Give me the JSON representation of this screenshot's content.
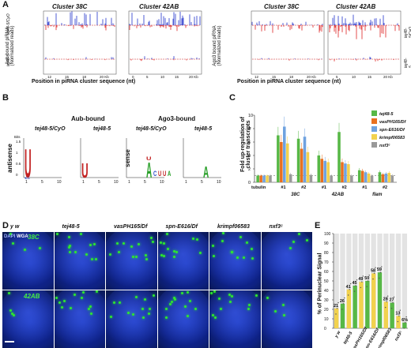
{
  "panels": {
    "A": "A",
    "B": "B",
    "C": "C",
    "D": "D",
    "E": "E"
  },
  "panelA": {
    "left_ylabel": [
      "Aub bound piRNA",
      "(Normalized reads)"
    ],
    "right_ylabel": [
      "Ago3 bound piRNA",
      "(Normalized reads)"
    ],
    "cluster38": "Cluster 38C",
    "cluster42": "Cluster 42AB",
    "row_tej_cyo": "tej48-5/CyO",
    "row_tej": "tej48-5",
    "xlabel": "Position in piRNA cluster sequence (nt)",
    "ticks38": [
      "12",
      "15",
      "18",
      "20 Kb"
    ],
    "ticks42": [
      "0",
      "5",
      "10",
      "15",
      "20 Kb"
    ],
    "ticks42r": [
      "5",
      "10",
      "15",
      "20 Kb"
    ],
    "ticks38r": [
      "12",
      "15",
      "18",
      "20 Kb"
    ]
  },
  "panelB": {
    "aub_title": "Aub-bound",
    "ago_title": "Ago3-bound",
    "g1": "tej48-5/CyO",
    "g2": "tej48-5",
    "antisense": "antisense",
    "sense": "sense",
    "bits": "Bits",
    "bits_ticks": [
      "1.5",
      "1",
      "0.5",
      "0"
    ],
    "pos_ticks": [
      "1",
      "5",
      "10"
    ]
  },
  "panelC": {
    "ylabel": [
      "Fold up-regulation of",
      "cluster transcripts"
    ],
    "yticks": [
      "0",
      "2",
      "4",
      "6",
      "8",
      "10"
    ],
    "xcats": [
      "tubulin",
      "#1",
      "#2",
      "#1",
      "#2",
      "#1",
      "#2"
    ],
    "groups": [
      "38C",
      "42AB",
      "flam"
    ],
    "legend": [
      "tej48-5",
      "vasPH165/Df",
      "spn-E616/Df",
      "krimpf06583",
      "nxf3ᶜ"
    ],
    "colors": [
      "#57b846",
      "#e8701f",
      "#6fa2e0",
      "#f2d24e",
      "#999999"
    ],
    "ylim": [
      0,
      10
    ]
  },
  "chart_data": {
    "type": "bar",
    "title": "",
    "ylabel": "Fold up-regulation of cluster transcripts",
    "ylim": [
      0,
      10
    ],
    "categories": [
      "tubulin",
      "38C #1",
      "38C #2",
      "42AB #1",
      "42AB #2",
      "flam #1",
      "flam #2"
    ],
    "series": [
      {
        "name": "tej48-5",
        "values": [
          1.0,
          7.0,
          6.5,
          4.0,
          7.5,
          1.8,
          1.5
        ]
      },
      {
        "name": "vasPH165/Df",
        "values": [
          1.0,
          6.0,
          5.0,
          3.5,
          3.0,
          1.7,
          1.2
        ]
      },
      {
        "name": "spn-E616/Df",
        "values": [
          1.0,
          8.3,
          6.8,
          3.2,
          2.8,
          1.5,
          1.3
        ]
      },
      {
        "name": "krimpf06583",
        "values": [
          1.0,
          5.8,
          4.5,
          3.0,
          2.7,
          1.3,
          1.4
        ]
      },
      {
        "name": "nxf3ᶜ",
        "values": [
          1.0,
          1.2,
          1.1,
          1.0,
          1.0,
          1.0,
          1.0
        ]
      }
    ]
  },
  "panelD": {
    "cols": [
      "y w",
      "tej48-5",
      "vasPH165/Df",
      "spn-E616/Df",
      "krimpf06583",
      "nxf3ᶜ"
    ],
    "row1": "38C",
    "row2": "42AB",
    "stain_dapi": "DAPI",
    "stain_wga": "WGA"
  },
  "panelE": {
    "ylabel": "% of Perinuclear Signal",
    "yticks": [
      "0",
      "10",
      "20",
      "30",
      "40",
      "50",
      "60",
      "70",
      "80",
      "90",
      "100"
    ],
    "cats": [
      "y w",
      "tej48-5",
      "vasPH165/Df",
      "spn-E616/Df",
      "krimpf06583",
      "nxf3ᶜ"
    ],
    "values": [
      21,
      26,
      41,
      45,
      49,
      50,
      58,
      59,
      28,
      27,
      13,
      6
    ],
    "labels": [
      "21",
      "26",
      "41",
      "45",
      "49",
      "50",
      "58",
      "59",
      "28",
      "27",
      "13",
      "6%"
    ]
  }
}
